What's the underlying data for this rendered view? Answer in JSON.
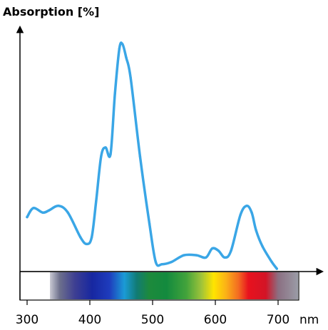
{
  "chart_data": {
    "type": "line",
    "title": "",
    "ylabel": "Absorption [%]",
    "xlabel": "nm",
    "x_ticks": [
      "300",
      "400",
      "500",
      "600",
      "700"
    ],
    "xlim": [
      300,
      750
    ],
    "ylim": [
      0,
      100
    ],
    "grid": false,
    "line_color": "#3aa6e6",
    "spectrum_bar": true,
    "series": [
      {
        "x": [
          300,
          310,
          325,
          335,
          350,
          365,
          385,
          395,
          403,
          410,
          418,
          425,
          433,
          440,
          447,
          452,
          458,
          465,
          480,
          495,
          505,
          515,
          530,
          550,
          570,
          585,
          595,
          605,
          615,
          625,
          640,
          650,
          658,
          665,
          675,
          690,
          698
        ],
        "y": [
          23,
          27,
          25,
          26,
          28,
          25,
          14,
          11,
          14,
          30,
          50,
          54,
          51,
          78,
          98,
          100,
          94,
          85,
          50,
          20,
          3,
          2,
          3,
          6,
          6,
          5,
          9,
          8,
          5,
          8,
          24,
          28,
          25,
          17,
          10,
          3,
          0
        ]
      }
    ]
  }
}
